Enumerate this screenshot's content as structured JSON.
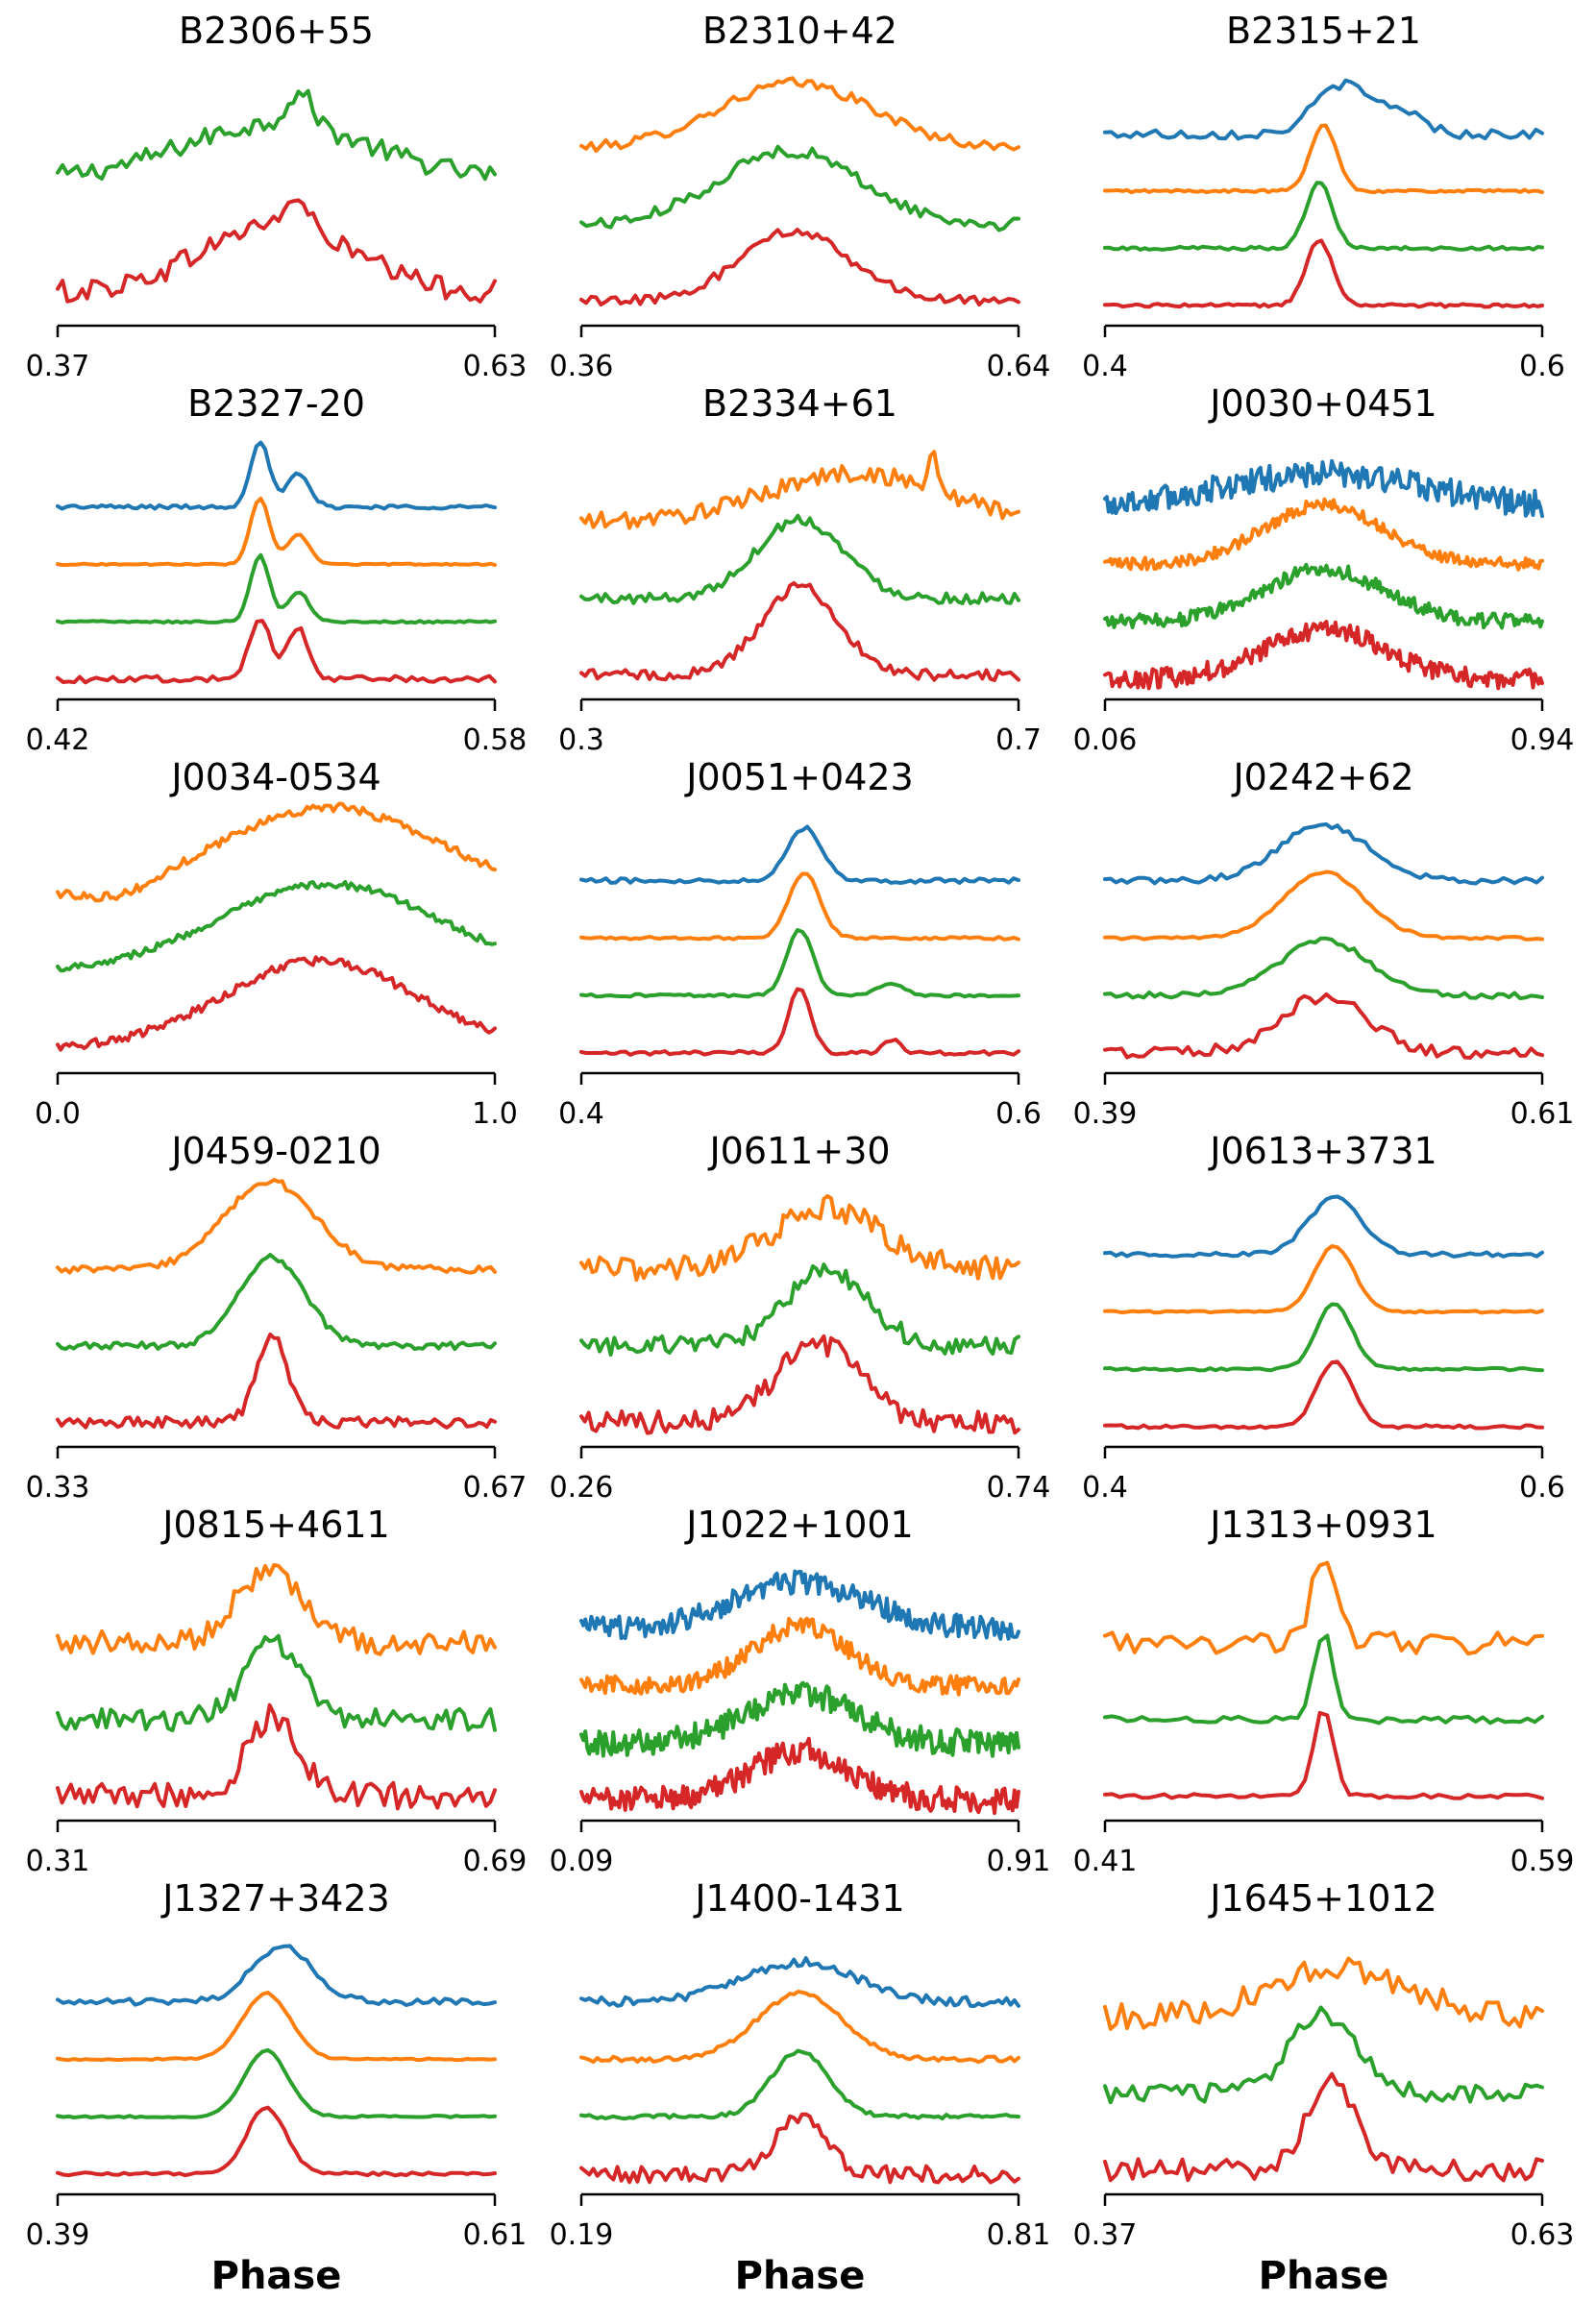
{
  "colors": {
    "blue": "#1f77b4",
    "orange": "#ff7f0e",
    "green": "#2ca02c",
    "red": "#d62728"
  },
  "xlabel": "Phase",
  "chart_data": [
    {
      "type": "line",
      "title": "B2306+55",
      "xlim": [
        0.37,
        0.63
      ],
      "xticks": [
        "0.37",
        "0.63"
      ],
      "series": [
        {
          "name": "green",
          "color": "green",
          "center": 0.5,
          "width": 0.055,
          "amp": 0.6,
          "noise": 0.22,
          "n": 90,
          "peaks": [
            {
              "c": 0.514,
              "w": 0.008,
              "a": 0.35
            }
          ]
        },
        {
          "name": "red",
          "color": "red",
          "center": 0.5,
          "width": 0.045,
          "amp": 0.75,
          "noise": 0.25,
          "n": 90,
          "peaks": [
            {
              "c": 0.512,
              "w": 0.007,
              "a": 0.3
            }
          ]
        }
      ]
    },
    {
      "type": "line",
      "title": "B2310+42",
      "xlim": [
        0.36,
        0.64
      ],
      "xticks": [
        "0.36",
        "0.64"
      ],
      "series": [
        {
          "name": "orange",
          "color": "orange",
          "center": 0.497,
          "width": 0.05,
          "amp": 0.75,
          "noise": 0.12,
          "n": 90
        },
        {
          "name": "green",
          "color": "green",
          "center": 0.493,
          "width": 0.045,
          "amp": 0.85,
          "noise": 0.14,
          "n": 90
        },
        {
          "name": "red",
          "color": "red",
          "center": 0.497,
          "width": 0.035,
          "amp": 0.8,
          "noise": 0.12,
          "n": 90
        }
      ]
    },
    {
      "type": "line",
      "title": "B2315+21",
      "xlim": [
        0.4,
        0.6
      ],
      "xticks": [
        "0.4",
        "0.6"
      ],
      "series": [
        {
          "name": "blue",
          "color": "blue",
          "center": 0.508,
          "width": 0.012,
          "amp": 0.75,
          "noise": 0.15,
          "n": 70,
          "bumps": [
            {
              "c": 0.535,
              "w": 0.01,
              "a": 0.35
            }
          ]
        },
        {
          "name": "orange",
          "color": "orange",
          "center": 0.5,
          "width": 0.006,
          "amp": 1.0,
          "noise": 0.04,
          "n": 100
        },
        {
          "name": "green",
          "color": "green",
          "center": 0.498,
          "width": 0.006,
          "amp": 1.0,
          "noise": 0.05,
          "n": 100
        },
        {
          "name": "red",
          "color": "red",
          "center": 0.498,
          "width": 0.006,
          "amp": 1.0,
          "noise": 0.05,
          "n": 100
        }
      ]
    },
    {
      "type": "line",
      "title": "B2327-20",
      "xlim": [
        0.42,
        0.58
      ],
      "xticks": [
        "0.42",
        "0.58"
      ],
      "series": [
        {
          "name": "blue",
          "color": "blue",
          "center": 0.494,
          "width": 0.0035,
          "amp": 1.0,
          "noise": 0.06,
          "n": 100,
          "bumps": [
            {
              "c": 0.508,
              "w": 0.004,
              "a": 0.5
            }
          ]
        },
        {
          "name": "orange",
          "color": "orange",
          "center": 0.494,
          "width": 0.0035,
          "amp": 1.0,
          "noise": 0.02,
          "n": 100,
          "bumps": [
            {
              "c": 0.508,
              "w": 0.004,
              "a": 0.45
            }
          ]
        },
        {
          "name": "green",
          "color": "green",
          "center": 0.494,
          "width": 0.0035,
          "amp": 1.0,
          "noise": 0.03,
          "n": 100,
          "bumps": [
            {
              "c": 0.508,
              "w": 0.004,
              "a": 0.45
            }
          ]
        },
        {
          "name": "red",
          "color": "red",
          "center": 0.494,
          "width": 0.004,
          "amp": 0.9,
          "noise": 0.1,
          "n": 80,
          "bumps": [
            {
              "c": 0.508,
              "w": 0.004,
              "a": 0.75
            }
          ]
        }
      ]
    },
    {
      "type": "line",
      "title": "B2334+61",
      "xlim": [
        0.3,
        0.7
      ],
      "xticks": [
        "0.3",
        "0.7"
      ],
      "series": [
        {
          "name": "orange",
          "color": "orange",
          "center": 0.55,
          "width": 0.08,
          "amp": 0.55,
          "noise": 0.2,
          "n": 110,
          "peaks": [
            {
              "c": 0.621,
              "w": 0.004,
              "a": 0.45
            }
          ]
        },
        {
          "name": "green",
          "color": "green",
          "center": 0.5,
          "width": 0.04,
          "amp": 0.9,
          "noise": 0.12,
          "n": 110
        },
        {
          "name": "red",
          "color": "red",
          "center": 0.5,
          "width": 0.035,
          "amp": 1.0,
          "noise": 0.12,
          "n": 110
        }
      ]
    },
    {
      "type": "line",
      "title": "J0030+0451",
      "xlim": [
        0.06,
        0.94
      ],
      "xticks": [
        "0.06",
        "0.94"
      ],
      "series": [
        {
          "name": "blue",
          "color": "blue",
          "center": 0.5,
          "width": 0.2,
          "amp": 0.5,
          "noise": 0.4,
          "n": 240
        },
        {
          "name": "orange",
          "color": "orange",
          "center": 0.5,
          "width": 0.12,
          "amp": 0.9,
          "noise": 0.18,
          "n": 240
        },
        {
          "name": "green",
          "color": "green",
          "center": 0.5,
          "width": 0.12,
          "amp": 0.8,
          "noise": 0.22,
          "n": 240
        },
        {
          "name": "red",
          "color": "red",
          "center": 0.5,
          "width": 0.12,
          "amp": 0.75,
          "noise": 0.3,
          "n": 240
        }
      ]
    },
    {
      "type": "line",
      "title": "J0034-0534",
      "xlim": [
        0.0,
        1.0
      ],
      "xticks": [
        "0.0",
        "1.0"
      ],
      "series": [
        {
          "name": "orange",
          "color": "orange",
          "center": 0.62,
          "width": 0.25,
          "amp": 1.0,
          "noise": 0.1,
          "n": 150,
          "bumps": [
            {
              "c": 0.15,
              "w": 0.08,
              "a": -0.15
            }
          ]
        },
        {
          "name": "green",
          "color": "green",
          "center": 0.62,
          "width": 0.25,
          "amp": 1.0,
          "noise": 0.08,
          "n": 150
        },
        {
          "name": "red",
          "color": "red",
          "center": 0.6,
          "width": 0.22,
          "amp": 1.0,
          "noise": 0.1,
          "n": 150
        }
      ]
    },
    {
      "type": "line",
      "title": "J0051+0423",
      "xlim": [
        0.4,
        0.6
      ],
      "xticks": [
        "0.4",
        "0.6"
      ],
      "series": [
        {
          "name": "blue",
          "color": "blue",
          "center": 0.502,
          "width": 0.008,
          "amp": 0.8,
          "noise": 0.07,
          "n": 90
        },
        {
          "name": "orange",
          "color": "orange",
          "center": 0.502,
          "width": 0.007,
          "amp": 1.0,
          "noise": 0.04,
          "n": 90
        },
        {
          "name": "green",
          "color": "green",
          "center": 0.5,
          "width": 0.006,
          "amp": 1.0,
          "noise": 0.04,
          "n": 90,
          "bumps": [
            {
              "c": 0.542,
              "w": 0.006,
              "a": 0.18
            }
          ]
        },
        {
          "name": "red",
          "color": "red",
          "center": 0.5,
          "width": 0.005,
          "amp": 1.0,
          "noise": 0.06,
          "n": 90,
          "bumps": [
            {
              "c": 0.542,
              "w": 0.004,
              "a": 0.2
            }
          ]
        }
      ]
    },
    {
      "type": "line",
      "title": "J0242+62",
      "xlim": [
        0.39,
        0.61
      ],
      "xticks": [
        "0.39",
        "0.61"
      ],
      "series": [
        {
          "name": "blue",
          "color": "blue",
          "center": 0.5,
          "width": 0.022,
          "amp": 0.85,
          "noise": 0.09,
          "n": 80
        },
        {
          "name": "orange",
          "color": "orange",
          "center": 0.5,
          "width": 0.02,
          "amp": 1.0,
          "noise": 0.04,
          "n": 80
        },
        {
          "name": "green",
          "color": "green",
          "center": 0.5,
          "width": 0.022,
          "amp": 0.85,
          "noise": 0.09,
          "n": 80
        },
        {
          "name": "red",
          "color": "red",
          "center": 0.5,
          "width": 0.022,
          "amp": 0.85,
          "noise": 0.18,
          "n": 80
        }
      ]
    },
    {
      "type": "line",
      "title": "J0459-0210",
      "xlim": [
        0.33,
        0.67
      ],
      "xticks": [
        "0.33",
        "0.67"
      ],
      "series": [
        {
          "name": "orange",
          "color": "orange",
          "center": 0.495,
          "width": 0.035,
          "amp": 1.0,
          "noise": 0.08,
          "n": 110
        },
        {
          "name": "green",
          "color": "green",
          "center": 0.497,
          "width": 0.025,
          "amp": 1.0,
          "noise": 0.08,
          "n": 110
        },
        {
          "name": "red",
          "color": "red",
          "center": 0.497,
          "width": 0.012,
          "amp": 1.0,
          "noise": 0.12,
          "n": 110
        }
      ]
    },
    {
      "type": "line",
      "title": "J0611+30",
      "xlim": [
        0.26,
        0.74
      ],
      "xticks": [
        "0.26",
        "0.74"
      ],
      "series": [
        {
          "name": "orange",
          "color": "orange",
          "center": 0.53,
          "width": 0.06,
          "amp": 0.7,
          "noise": 0.28,
          "n": 120
        },
        {
          "name": "green",
          "color": "green",
          "center": 0.53,
          "width": 0.045,
          "amp": 0.85,
          "noise": 0.22,
          "n": 120
        },
        {
          "name": "red",
          "color": "red",
          "center": 0.52,
          "width": 0.045,
          "amp": 0.9,
          "noise": 0.25,
          "n": 120
        }
      ]
    },
    {
      "type": "line",
      "title": "J0613+3731",
      "xlim": [
        0.4,
        0.6
      ],
      "xticks": [
        "0.4",
        "0.6"
      ],
      "series": [
        {
          "name": "blue",
          "color": "blue",
          "center": 0.505,
          "width": 0.012,
          "amp": 0.85,
          "noise": 0.07,
          "n": 80
        },
        {
          "name": "orange",
          "color": "orange",
          "center": 0.505,
          "width": 0.009,
          "amp": 1.0,
          "noise": 0.03,
          "n": 80
        },
        {
          "name": "green",
          "color": "green",
          "center": 0.505,
          "width": 0.008,
          "amp": 1.0,
          "noise": 0.04,
          "n": 80
        },
        {
          "name": "red",
          "color": "red",
          "center": 0.505,
          "width": 0.008,
          "amp": 1.0,
          "noise": 0.05,
          "n": 80
        }
      ]
    },
    {
      "type": "line",
      "title": "J0815+4611",
      "xlim": [
        0.31,
        0.69
      ],
      "xticks": [
        "0.31",
        "0.69"
      ],
      "series": [
        {
          "name": "orange",
          "color": "orange",
          "center": 0.495,
          "width": 0.03,
          "amp": 0.8,
          "noise": 0.28,
          "n": 100
        },
        {
          "name": "green",
          "color": "green",
          "center": 0.497,
          "width": 0.025,
          "amp": 0.85,
          "noise": 0.25,
          "n": 100
        },
        {
          "name": "red",
          "color": "red",
          "center": 0.497,
          "width": 0.022,
          "amp": 0.9,
          "noise": 0.3,
          "n": 100
        }
      ]
    },
    {
      "type": "line",
      "title": "J1022+1001",
      "xlim": [
        0.09,
        0.91
      ],
      "xticks": [
        "0.09",
        "0.91"
      ],
      "series": [
        {
          "name": "blue",
          "color": "blue",
          "center": 0.5,
          "width": 0.12,
          "amp": 0.7,
          "noise": 0.35,
          "n": 220
        },
        {
          "name": "orange",
          "color": "orange",
          "center": 0.5,
          "width": 0.09,
          "amp": 0.9,
          "noise": 0.28,
          "n": 220
        },
        {
          "name": "green",
          "color": "green",
          "center": 0.5,
          "width": 0.1,
          "amp": 0.75,
          "noise": 0.4,
          "n": 220
        },
        {
          "name": "red",
          "color": "red",
          "center": 0.5,
          "width": 0.09,
          "amp": 0.75,
          "noise": 0.4,
          "n": 220
        }
      ]
    },
    {
      "type": "line",
      "title": "J1313+0931",
      "xlim": [
        0.41,
        0.59
      ],
      "xticks": [
        "0.41",
        "0.59"
      ],
      "series": [
        {
          "name": "orange",
          "color": "orange",
          "center": 0.5,
          "width": 0.005,
          "amp": 1.0,
          "noise": 0.25,
          "n": 60
        },
        {
          "name": "green",
          "color": "green",
          "center": 0.5,
          "width": 0.004,
          "amp": 1.0,
          "noise": 0.08,
          "n": 60
        },
        {
          "name": "red",
          "color": "red",
          "center": 0.5,
          "width": 0.004,
          "amp": 1.0,
          "noise": 0.05,
          "n": 60
        }
      ]
    },
    {
      "type": "line",
      "title": "J1327+3423",
      "xlim": [
        0.39,
        0.61
      ],
      "xticks": [
        "0.39",
        "0.61"
      ],
      "series": [
        {
          "name": "blue",
          "color": "blue",
          "center": 0.503,
          "width": 0.015,
          "amp": 0.85,
          "noise": 0.1,
          "n": 80
        },
        {
          "name": "orange",
          "color": "orange",
          "center": 0.495,
          "width": 0.012,
          "amp": 1.0,
          "noise": 0.03,
          "n": 80
        },
        {
          "name": "green",
          "color": "green",
          "center": 0.495,
          "width": 0.011,
          "amp": 1.0,
          "noise": 0.03,
          "n": 80
        },
        {
          "name": "red",
          "color": "red",
          "center": 0.495,
          "width": 0.01,
          "amp": 1.0,
          "noise": 0.05,
          "n": 80
        }
      ]
    },
    {
      "type": "line",
      "title": "J1400-1431",
      "xlim": [
        0.19,
        0.81
      ],
      "xticks": [
        "0.19",
        "0.81"
      ],
      "series": [
        {
          "name": "blue",
          "color": "blue",
          "center": 0.5,
          "width": 0.08,
          "amp": 0.6,
          "noise": 0.14,
          "n": 110
        },
        {
          "name": "orange",
          "color": "orange",
          "center": 0.5,
          "width": 0.06,
          "amp": 1.0,
          "noise": 0.08,
          "n": 110
        },
        {
          "name": "green",
          "color": "green",
          "center": 0.5,
          "width": 0.04,
          "amp": 1.0,
          "noise": 0.06,
          "n": 110
        },
        {
          "name": "red",
          "color": "red",
          "center": 0.5,
          "width": 0.035,
          "amp": 0.85,
          "noise": 0.25,
          "n": 110
        }
      ]
    },
    {
      "type": "line",
      "title": "J1645+1012",
      "xlim": [
        0.37,
        0.63
      ],
      "xticks": [
        "0.37",
        "0.63"
      ],
      "series": [
        {
          "name": "orange",
          "color": "orange",
          "center": 0.51,
          "width": 0.04,
          "amp": 0.55,
          "noise": 0.3,
          "n": 80
        },
        {
          "name": "green",
          "color": "green",
          "center": 0.5,
          "width": 0.02,
          "amp": 0.9,
          "noise": 0.22,
          "n": 80
        },
        {
          "name": "red",
          "color": "red",
          "center": 0.505,
          "width": 0.015,
          "amp": 1.0,
          "noise": 0.25,
          "n": 80
        }
      ]
    }
  ]
}
